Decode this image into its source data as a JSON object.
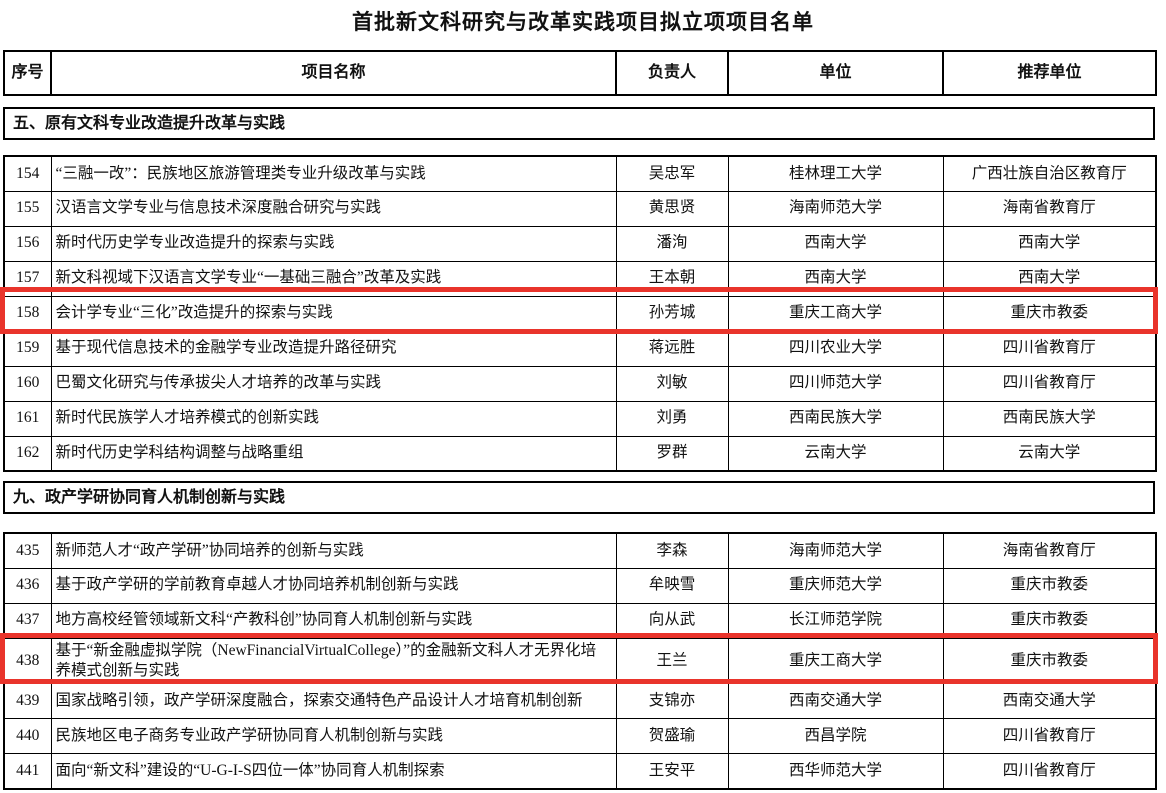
{
  "page": {
    "title": "首批新文科研究与改革实践项目拟立项项目名单"
  },
  "columns": [
    "序号",
    "项目名称",
    "负责人",
    "单位",
    "推荐单位"
  ],
  "highlight_color": "#e9342b",
  "highlighted_rows": [
    "158",
    "438"
  ],
  "sections": [
    {
      "heading": "五、原有文科专业改造提升改革与实践",
      "rows": [
        {
          "num": "154",
          "title": "“三融一改”：民族地区旅游管理类专业升级改革与实践",
          "person": "吴忠军",
          "unit": "桂林理工大学",
          "recommender": "广西壮族自治区教育厅",
          "highlighted": false
        },
        {
          "num": "155",
          "title": "汉语言文学专业与信息技术深度融合研究与实践",
          "person": "黄思贤",
          "unit": "海南师范大学",
          "recommender": "海南省教育厅",
          "highlighted": false
        },
        {
          "num": "156",
          "title": "新时代历史学专业改造提升的探索与实践",
          "person": "潘洵",
          "unit": "西南大学",
          "recommender": "西南大学",
          "highlighted": false
        },
        {
          "num": "157",
          "title": "新文科视域下汉语言文学专业“一基础三融合”改革及实践",
          "person": "王本朝",
          "unit": "西南大学",
          "recommender": "西南大学",
          "highlighted": false
        },
        {
          "num": "158",
          "title": "会计学专业“三化”改造提升的探索与实践",
          "person": "孙芳城",
          "unit": "重庆工商大学",
          "recommender": "重庆市教委",
          "highlighted": true
        },
        {
          "num": "159",
          "title": "基于现代信息技术的金融学专业改造提升路径研究",
          "person": "蒋远胜",
          "unit": "四川农业大学",
          "recommender": "四川省教育厅",
          "highlighted": false
        },
        {
          "num": "160",
          "title": "巴蜀文化研究与传承拔尖人才培养的改革与实践",
          "person": "刘敏",
          "unit": "四川师范大学",
          "recommender": "四川省教育厅",
          "highlighted": false
        },
        {
          "num": "161",
          "title": "新时代民族学人才培养模式的创新实践",
          "person": "刘勇",
          "unit": "西南民族大学",
          "recommender": "西南民族大学",
          "highlighted": false
        },
        {
          "num": "162",
          "title": "新时代历史学科结构调整与战略重组",
          "person": "罗群",
          "unit": "云南大学",
          "recommender": "云南大学",
          "highlighted": false
        }
      ]
    },
    {
      "heading": "九、政产学研协同育人机制创新与实践",
      "rows": [
        {
          "num": "435",
          "title": "新师范人才“政产学研”协同培养的创新与实践",
          "person": "李森",
          "unit": "海南师范大学",
          "recommender": "海南省教育厅",
          "highlighted": false
        },
        {
          "num": "436",
          "title": "基于政产学研的学前教育卓越人才协同培养机制创新与实践",
          "person": "牟映雪",
          "unit": "重庆师范大学",
          "recommender": "重庆市教委",
          "highlighted": false
        },
        {
          "num": "437",
          "title": "地方高校经管领域新文科“产教科创”协同育人机制创新与实践",
          "person": "向从武",
          "unit": "长江师范学院",
          "recommender": "重庆市教委",
          "highlighted": false
        },
        {
          "num": "438",
          "title": "基于“新金融虚拟学院（NewFinancialVirtualCollege）”的金融新文科人才无界化培养模式创新与实践",
          "person": "王兰",
          "unit": "重庆工商大学",
          "recommender": "重庆市教委",
          "highlighted": true
        },
        {
          "num": "439",
          "title": "国家战略引领，政产学研深度融合，探索交通特色产品设计人才培育机制创新",
          "person": "支锦亦",
          "unit": "西南交通大学",
          "recommender": "西南交通大学",
          "highlighted": false
        },
        {
          "num": "440",
          "title": "民族地区电子商务专业政产学研协同育人机制创新与实践",
          "person": "贺盛瑜",
          "unit": "西昌学院",
          "recommender": "四川省教育厅",
          "highlighted": false
        },
        {
          "num": "441",
          "title": "面向“新文科”建设的“U-G-I-S四位一体”协同育人机制探索",
          "person": "王安平",
          "unit": "西华师范大学",
          "recommender": "四川省教育厅",
          "highlighted": false
        }
      ]
    }
  ]
}
